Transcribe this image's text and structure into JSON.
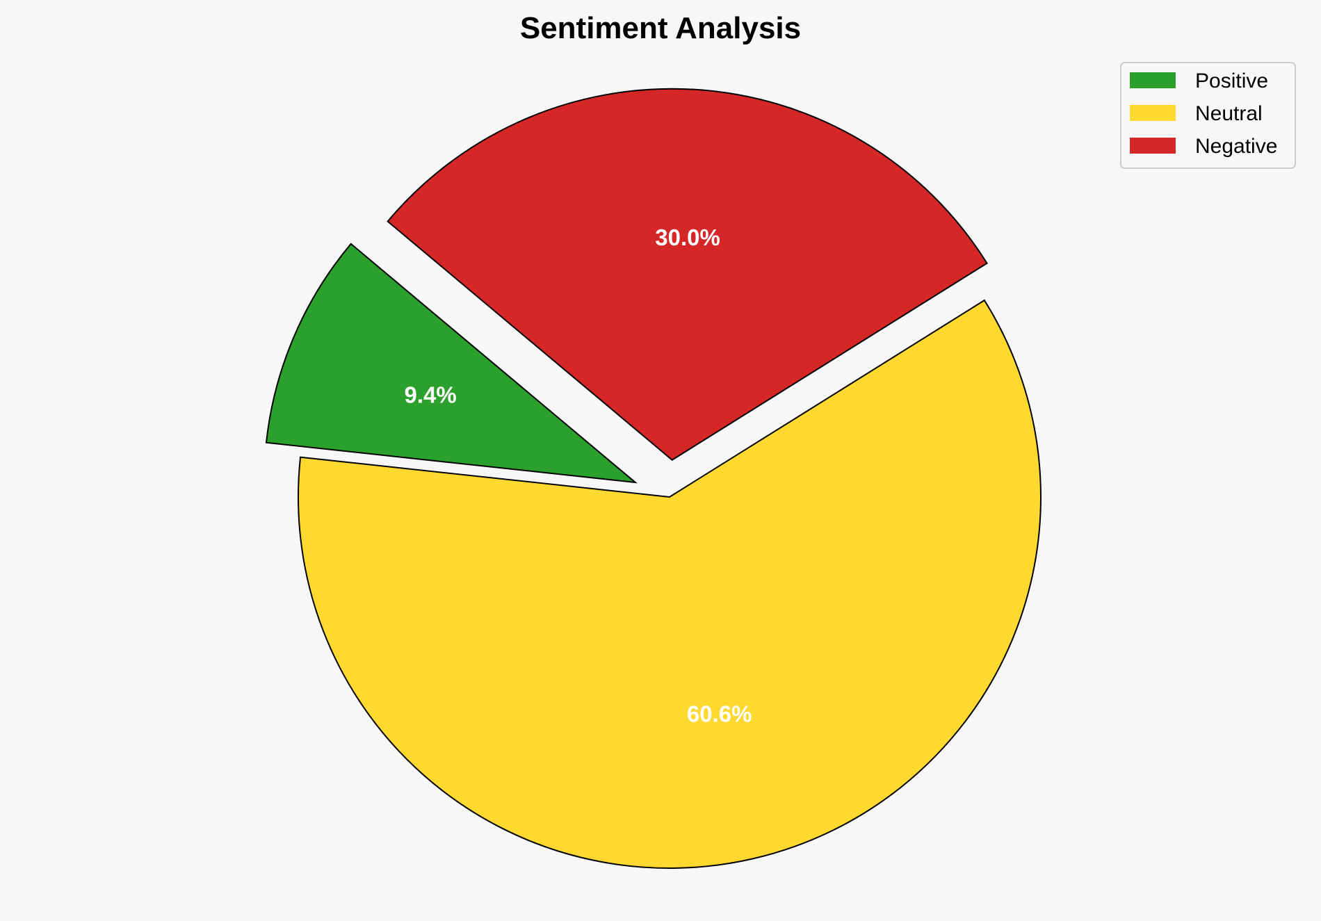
{
  "chart_data": {
    "type": "pie",
    "title": "Sentiment Analysis",
    "categories": [
      "Positive",
      "Neutral",
      "Negative"
    ],
    "values": [
      9.4,
      60.6,
      30.0
    ],
    "labels": [
      "9.4%",
      "60.6%",
      "30.0%"
    ],
    "colors": [
      "#2ca02c",
      "#ffd92f",
      "#d62728"
    ],
    "explode": [
      0.1,
      0,
      0.1
    ],
    "start_angle": 140,
    "direction": "counterclockwise",
    "legend_position": "top-right",
    "edge_color": "#000000"
  }
}
